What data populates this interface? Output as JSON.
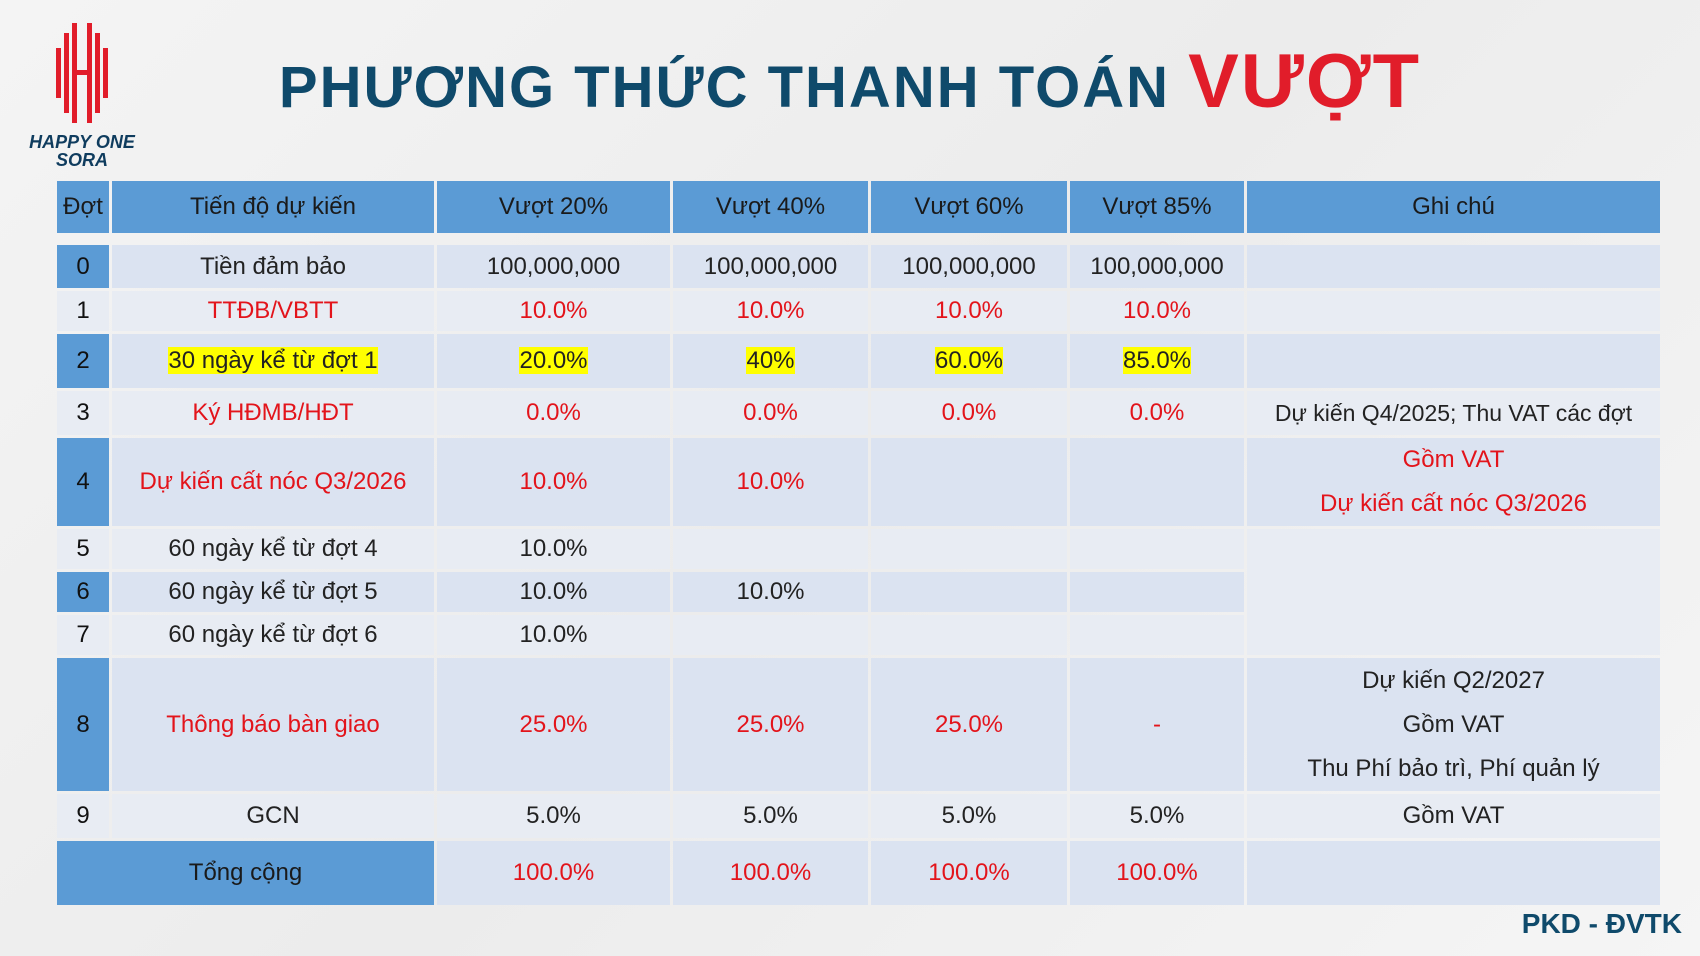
{
  "header": {
    "logo_line1": "HAPPY ONE",
    "logo_line2": "SORA",
    "title": "PHƯƠNG THỨC THANH TOÁN",
    "title_highlight": "VƯỢT"
  },
  "table": {
    "columns": [
      "Đợt",
      "Tiến độ dự kiến",
      "Vượt 20%",
      "Vượt 40%",
      "Vượt 60%",
      "Vượt 85%",
      "Ghi chú"
    ],
    "rows": [
      {
        "dot": "0",
        "milestone": "Tiền đảm bảo",
        "v20": "100,000,000",
        "v40": "100,000,000",
        "v60": "100,000,000",
        "v85": "100,000,000"
      },
      {
        "dot": "1",
        "milestone": "TTĐB/VBTT",
        "v20": "10.0%",
        "v40": "10.0%",
        "v60": "10.0%",
        "v85": "10.0%"
      },
      {
        "dot": "2",
        "milestone": "30 ngày kể từ đợt 1",
        "v20": "20.0%",
        "v40": "40%",
        "v60": "60.0%",
        "v85": "85.0%"
      },
      {
        "dot": "3",
        "milestone": "Ký HĐMB/HĐT",
        "v20": "0.0%",
        "v40": "0.0%",
        "v60": "0.0%",
        "v85": "0.0%",
        "note": [
          "Dự kiến Q4/2025; Thu VAT các đợt"
        ]
      },
      {
        "dot": "4",
        "milestone": "Dự kiến cất nóc Q3/2026",
        "v20": "10.0%",
        "v40": "10.0%",
        "note": [
          "Gồm VAT",
          "Dự kiến cất nóc Q3/2026"
        ]
      },
      {
        "dot": "5",
        "milestone": "60 ngày kể từ đợt 4",
        "v20": "10.0%"
      },
      {
        "dot": "6",
        "milestone": "60 ngày kể từ đợt 5",
        "v20": "10.0%",
        "v40": "10.0%"
      },
      {
        "dot": "7",
        "milestone": "60 ngày kể từ đợt 6",
        "v20": "10.0%"
      },
      {
        "dot": "8",
        "milestone": "Thông báo bàn giao",
        "v20": "25.0%",
        "v40": "25.0%",
        "v60": "25.0%",
        "v85": "-",
        "note": [
          "Dự kiến Q2/2027",
          "Gồm VAT",
          "Thu Phí bảo trì, Phí quản lý"
        ]
      },
      {
        "dot": "9",
        "milestone": "GCN",
        "v20": "5.0%",
        "v40": "5.0%",
        "v60": "5.0%",
        "v85": "5.0%",
        "note": [
          "Gồm VAT"
        ]
      }
    ],
    "total": {
      "label": "Tổng cộng",
      "v20": "100.0%",
      "v40": "100.0%",
      "v60": "100.0%",
      "v85": "100.0%"
    }
  },
  "footer": {
    "text": "PKD - ĐVTK"
  }
}
